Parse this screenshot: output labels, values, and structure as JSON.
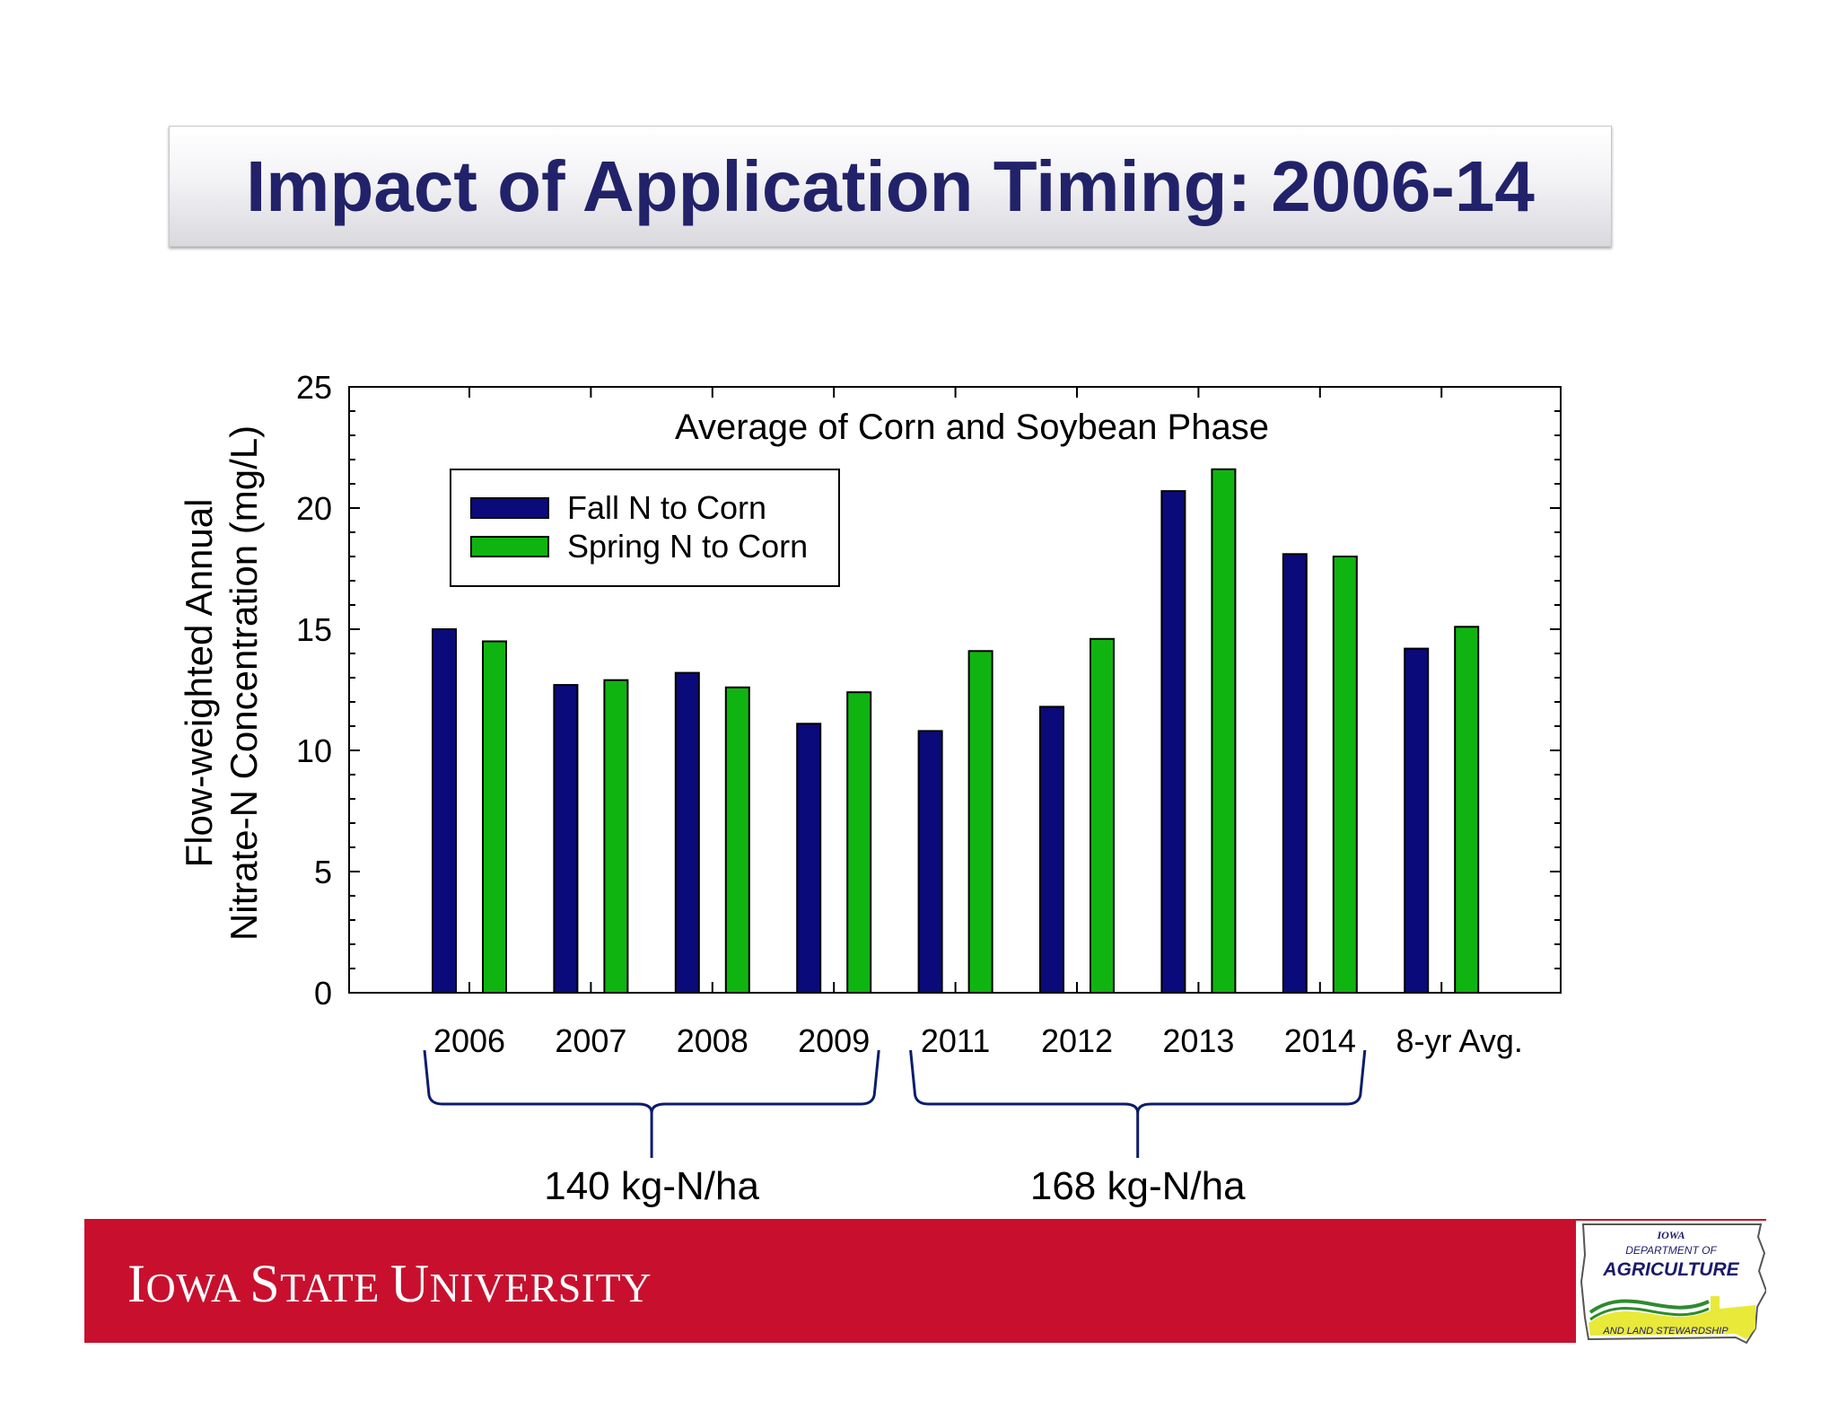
{
  "slide": {
    "title": "Impact of Application Timing: 2006-14"
  },
  "chart_data": {
    "type": "bar",
    "title": "Average of Corn and Soybean Phase",
    "ylabel_line1": "Flow-weighted Annual",
    "ylabel_line2": "Nitrate-N Concentration (mg/L)",
    "xlabel": "",
    "categories": [
      "2006",
      "2007",
      "2008",
      "2009",
      "2011",
      "2012",
      "2013",
      "2014",
      "8-yr Avg."
    ],
    "series": [
      {
        "name": "Fall N to Corn",
        "color": "#0a0a7a",
        "values": [
          15.0,
          12.7,
          13.2,
          11.1,
          10.8,
          11.8,
          20.7,
          18.1,
          14.2
        ]
      },
      {
        "name": "Spring N to Corn",
        "color": "#10b410",
        "values": [
          14.5,
          12.9,
          12.6,
          12.4,
          14.1,
          14.6,
          21.6,
          18.0,
          15.1
        ]
      }
    ],
    "ylim": [
      0,
      25
    ],
    "yticks": [
      0,
      5,
      10,
      15,
      20,
      25
    ],
    "legend_position": "top-left",
    "grid": false,
    "groupings": [
      {
        "label": "140 kg-N/ha",
        "from": "2006",
        "to": "2009"
      },
      {
        "label": "168 kg-N/ha",
        "from": "2011",
        "to": "2014"
      }
    ]
  },
  "footer": {
    "institution_initial_1": "I",
    "institution_rest_1": "OWA ",
    "institution_initial_2": "S",
    "institution_rest_2": "TATE ",
    "institution_initial_3": "U",
    "institution_rest_3": "NIVERSITY",
    "logo_line1": "IOWA",
    "logo_line2": "DEPARTMENT OF",
    "logo_line3": "AGRICULTURE",
    "logo_line4": "AND LAND STEWARDSHIP"
  }
}
